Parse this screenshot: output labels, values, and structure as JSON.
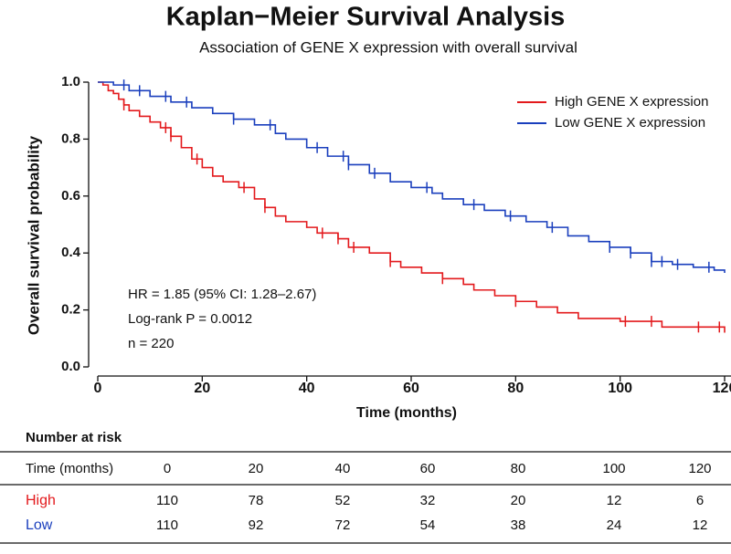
{
  "chart_data": {
    "type": "step",
    "title": "Kaplan−Meier Survival Analysis",
    "subtitle": "Association of GENE X expression with overall survival",
    "x_label": "Time (months)",
    "y_label": "Overall survival probability",
    "xlim": [
      0,
      120
    ],
    "ylim": [
      0,
      1
    ],
    "xticks": [
      0,
      20,
      40,
      60,
      80,
      100,
      120
    ],
    "yticks": [
      {
        "value": 0,
        "label": "0.0"
      },
      {
        "value": 0.2,
        "label": "0.2"
      },
      {
        "value": 0.4,
        "label": "0.4"
      },
      {
        "value": 0.6,
        "label": "0.6"
      },
      {
        "value": 0.8,
        "label": "0.8"
      },
      {
        "value": 1,
        "label": "1.0"
      }
    ],
    "legend": "top-right",
    "annotations": [
      "HR = 1.85 (95% CI: 1.28–2.67)",
      "Log-rank P = 0.0012",
      "n = 220"
    ],
    "series": [
      {
        "name": "High GENE X expression",
        "color": "#e3191c",
        "x": [
          0,
          1,
          2,
          3,
          4,
          5,
          6,
          8,
          10,
          12,
          14,
          16,
          18,
          20,
          22,
          24,
          27,
          30,
          32,
          34,
          36,
          40,
          42,
          46,
          48,
          52,
          56,
          58,
          62,
          66,
          70,
          72,
          76,
          80,
          84,
          88,
          92,
          100,
          108,
          120
        ],
        "values": [
          1.0,
          0.99,
          0.97,
          0.96,
          0.94,
          0.92,
          0.9,
          0.88,
          0.86,
          0.84,
          0.81,
          0.77,
          0.73,
          0.7,
          0.67,
          0.65,
          0.63,
          0.59,
          0.56,
          0.53,
          0.51,
          0.49,
          0.47,
          0.45,
          0.42,
          0.4,
          0.37,
          0.35,
          0.33,
          0.31,
          0.29,
          0.27,
          0.25,
          0.23,
          0.21,
          0.19,
          0.17,
          0.16,
          0.14,
          0.12
        ],
        "censored": [
          5,
          13,
          14,
          19,
          28,
          32,
          43,
          46,
          49,
          56,
          66,
          80,
          101,
          106,
          115,
          119
        ]
      },
      {
        "name": "Low GENE X expression",
        "color": "#1a3fbd",
        "x": [
          0,
          3,
          6,
          10,
          14,
          18,
          22,
          26,
          30,
          34,
          36,
          40,
          44,
          48,
          52,
          56,
          60,
          64,
          66,
          70,
          74,
          78,
          82,
          86,
          90,
          94,
          98,
          102,
          106,
          110,
          114,
          118,
          120
        ],
        "values": [
          1.0,
          0.99,
          0.97,
          0.95,
          0.93,
          0.91,
          0.89,
          0.87,
          0.85,
          0.82,
          0.8,
          0.77,
          0.74,
          0.71,
          0.68,
          0.65,
          0.63,
          0.61,
          0.59,
          0.57,
          0.55,
          0.53,
          0.51,
          0.49,
          0.46,
          0.44,
          0.42,
          0.4,
          0.37,
          0.36,
          0.35,
          0.34,
          0.33
        ],
        "censored": [
          5,
          8,
          13,
          17,
          26,
          33,
          42,
          47,
          48,
          53,
          63,
          72,
          79,
          87,
          98,
          102,
          106,
          108,
          111,
          117
        ]
      }
    ],
    "risk_table": {
      "title": "Number at risk",
      "header": "Time (months)",
      "times": [
        0,
        20,
        40,
        60,
        80,
        100,
        120
      ],
      "rows": [
        {
          "name": "High",
          "color": "#e3191c",
          "values": [
            110,
            78,
            52,
            32,
            20,
            12,
            6
          ]
        },
        {
          "name": "Low",
          "color": "#1a3fbd",
          "values": [
            110,
            92,
            72,
            54,
            38,
            24,
            12
          ]
        }
      ]
    }
  }
}
